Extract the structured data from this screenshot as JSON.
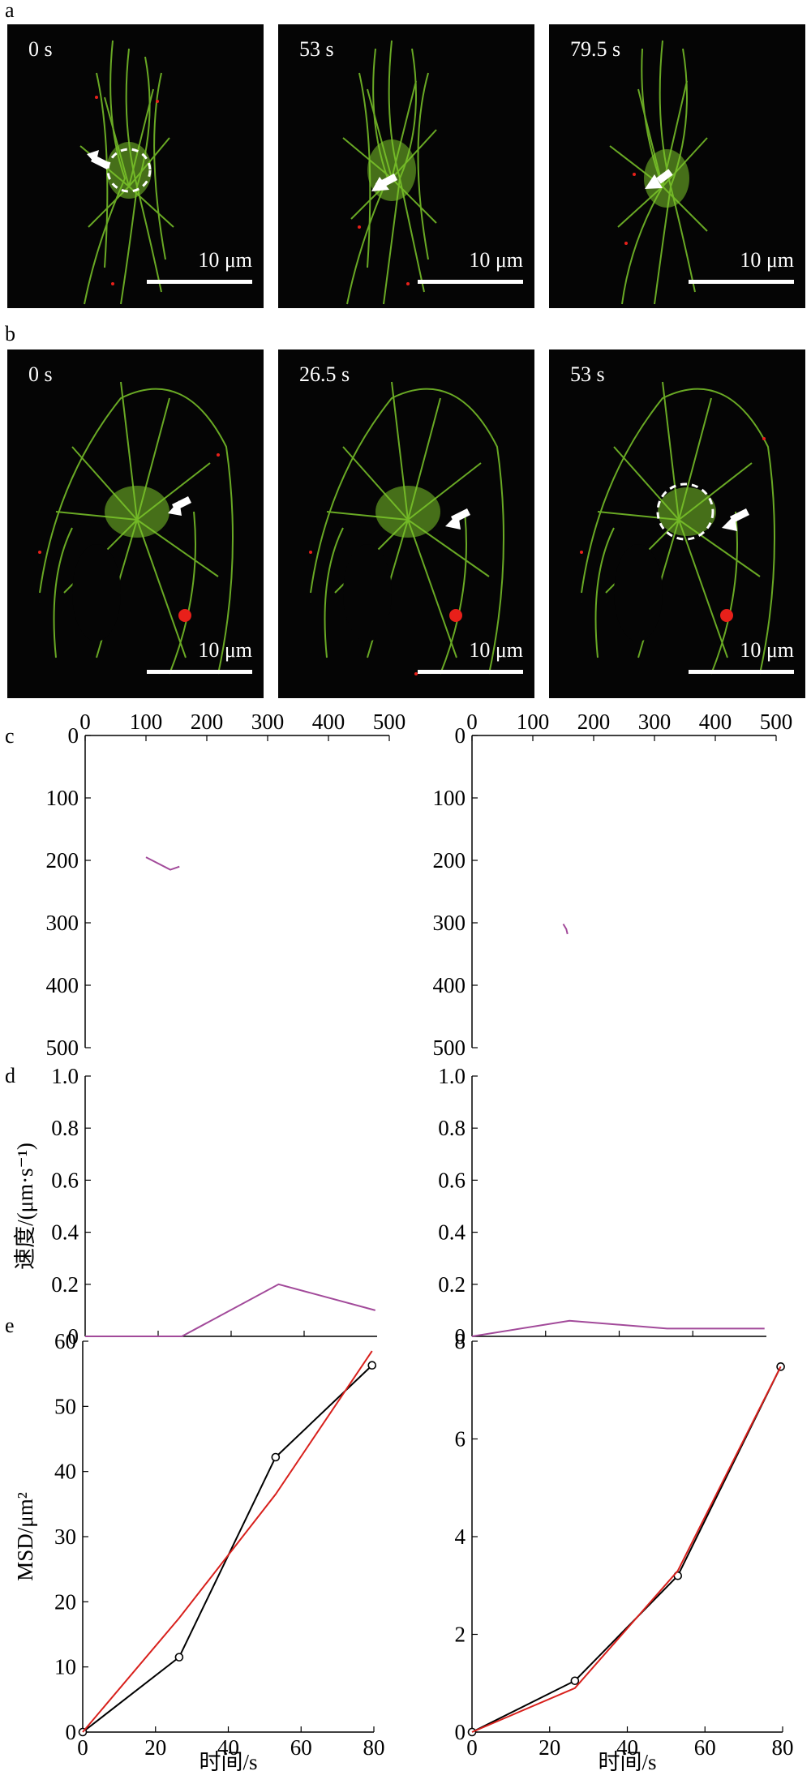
{
  "panels": {
    "a": {
      "label": "a",
      "frames": [
        {
          "time": "0 s",
          "scale": "10 μm"
        },
        {
          "time": "53 s",
          "scale": "10 μm"
        },
        {
          "time": "79.5 s",
          "scale": "10 μm"
        }
      ]
    },
    "b": {
      "label": "b",
      "frames": [
        {
          "time": "0 s",
          "scale": "10 μm"
        },
        {
          "time": "26.5 s",
          "scale": "10 μm"
        },
        {
          "time": "53 s",
          "scale": "10 μm"
        }
      ]
    },
    "c": {
      "label": "c"
    },
    "d": {
      "label": "d"
    },
    "e": {
      "label": "e"
    }
  },
  "colors": {
    "microtubule": "#7bc62a",
    "puncta": "#e8201a",
    "trajectory": "#a24a9a",
    "msd_data": "#000000",
    "msd_fit": "#d8201c"
  },
  "chart_data": [
    {
      "id": "c-left",
      "type": "line",
      "x_ticks": [
        "0",
        "100",
        "200",
        "300",
        "400",
        "500"
      ],
      "y_ticks": [
        "0",
        "100",
        "200",
        "300",
        "400",
        "500"
      ],
      "xlim": [
        0,
        500
      ],
      "ylim": [
        0,
        500
      ],
      "y_reversed": true,
      "series": [
        {
          "x": [
            100,
            140,
            155
          ],
          "y": [
            195,
            215,
            210
          ]
        }
      ]
    },
    {
      "id": "c-right",
      "type": "line",
      "x_ticks": [
        "0",
        "100",
        "200",
        "300",
        "400",
        "500"
      ],
      "y_ticks": [
        "0",
        "100",
        "200",
        "300",
        "400",
        "500"
      ],
      "xlim": [
        0,
        500
      ],
      "ylim": [
        0,
        500
      ],
      "y_reversed": true,
      "series": [
        {
          "x": [
            150,
            155,
            157
          ],
          "y": [
            302,
            310,
            318
          ]
        }
      ]
    },
    {
      "id": "d-left",
      "type": "line",
      "ylabel": "速度/(μm·s⁻¹)",
      "y_ticks": [
        "0",
        "0.2",
        "0.4",
        "0.6",
        "0.8",
        "1.0"
      ],
      "xlim": [
        0,
        80
      ],
      "ylim": [
        0,
        1
      ],
      "series": [
        {
          "x": [
            0,
            26.5,
            53,
            79.5
          ],
          "y": [
            0,
            0,
            0.2,
            0.1
          ]
        }
      ]
    },
    {
      "id": "d-right",
      "type": "line",
      "y_ticks": [
        "0",
        "0.2",
        "0.4",
        "0.6",
        "0.8",
        "1.0"
      ],
      "xlim": [
        0,
        80
      ],
      "ylim": [
        0,
        1
      ],
      "series": [
        {
          "x": [
            0,
            26.5,
            53,
            79.5
          ],
          "y": [
            0,
            0.06,
            0.03,
            0.03
          ]
        }
      ]
    },
    {
      "id": "e-left",
      "type": "line",
      "xlabel": "时间/s",
      "ylabel": "MSD/μm²",
      "x_ticks": [
        "0",
        "20",
        "40",
        "60",
        "80"
      ],
      "y_ticks": [
        "0",
        "10",
        "20",
        "30",
        "40",
        "50",
        "60"
      ],
      "xlim": [
        0,
        80
      ],
      "ylim": [
        0,
        60
      ],
      "series": [
        {
          "role": "data",
          "x": [
            0,
            26.5,
            53,
            79.5
          ],
          "y": [
            0,
            11.5,
            42.2,
            56.3
          ]
        },
        {
          "role": "fit",
          "x": [
            0,
            26.5,
            53,
            79.5
          ],
          "y": [
            0,
            17.5,
            36.5,
            58.5
          ]
        }
      ]
    },
    {
      "id": "e-right",
      "type": "line",
      "xlabel": "时间/s",
      "x_ticks": [
        "0",
        "20",
        "40",
        "60",
        "80"
      ],
      "y_ticks": [
        "0",
        "2",
        "4",
        "6",
        "8"
      ],
      "xlim": [
        0,
        80
      ],
      "ylim": [
        0,
        8
      ],
      "series": [
        {
          "role": "data",
          "x": [
            0,
            26.5,
            53,
            79.5
          ],
          "y": [
            0,
            1.05,
            3.2,
            7.48
          ]
        },
        {
          "role": "fit",
          "x": [
            0,
            26.5,
            53,
            79.5
          ],
          "y": [
            0,
            0.9,
            3.3,
            7.48
          ]
        }
      ]
    }
  ]
}
